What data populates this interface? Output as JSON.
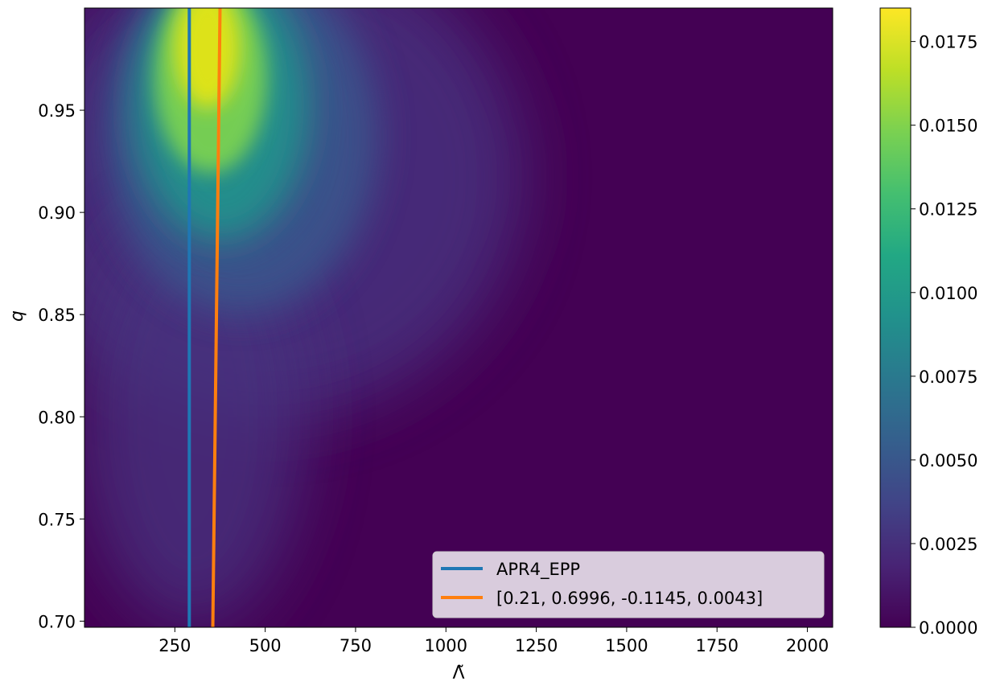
{
  "chart_data": {
    "type": "heatmap",
    "title": "",
    "xlabel": "Λ̃",
    "ylabel": "q",
    "xlim": [
      0,
      2070
    ],
    "ylim": [
      0.697,
      1.0
    ],
    "x_ticks": [
      {
        "value": 250,
        "label": "250"
      },
      {
        "value": 500,
        "label": "500"
      },
      {
        "value": 750,
        "label": "750"
      },
      {
        "value": 1000,
        "label": "1000"
      },
      {
        "value": 1250,
        "label": "1250"
      },
      {
        "value": 1500,
        "label": "1500"
      },
      {
        "value": 1750,
        "label": "1750"
      },
      {
        "value": 2000,
        "label": "2000"
      }
    ],
    "y_ticks": [
      {
        "value": 0.7,
        "label": "0.70"
      },
      {
        "value": 0.75,
        "label": "0.75"
      },
      {
        "value": 0.8,
        "label": "0.80"
      },
      {
        "value": 0.85,
        "label": "0.85"
      },
      {
        "value": 0.9,
        "label": "0.90"
      },
      {
        "value": 0.95,
        "label": "0.95"
      }
    ],
    "colorbar": {
      "colormap": "viridis",
      "range": [
        0.0,
        0.0185
      ],
      "ticks": [
        {
          "value": 0.0,
          "label": "0.0000"
        },
        {
          "value": 0.0025,
          "label": "0.0025"
        },
        {
          "value": 0.005,
          "label": "0.0050"
        },
        {
          "value": 0.0075,
          "label": "0.0075"
        },
        {
          "value": 0.01,
          "label": "0.0100"
        },
        {
          "value": 0.0125,
          "label": "0.0125"
        },
        {
          "value": 0.015,
          "label": "0.0150"
        },
        {
          "value": 0.0175,
          "label": "0.0175"
        }
      ]
    },
    "density_peak": {
      "x": 300,
      "y": 0.97
    },
    "series": [
      {
        "name": "APR4_EPP",
        "color": "#1f77b4",
        "x": [
          290,
          290
        ],
        "y": [
          0.697,
          1.0
        ]
      },
      {
        "name": "[0.21, 0.6996, -0.1145, 0.0043]",
        "color": "#ff7f0e",
        "x": [
          355,
          375
        ],
        "y": [
          0.697,
          1.0
        ]
      }
    ],
    "legend": {
      "position": "lower-right"
    },
    "grid": false
  }
}
